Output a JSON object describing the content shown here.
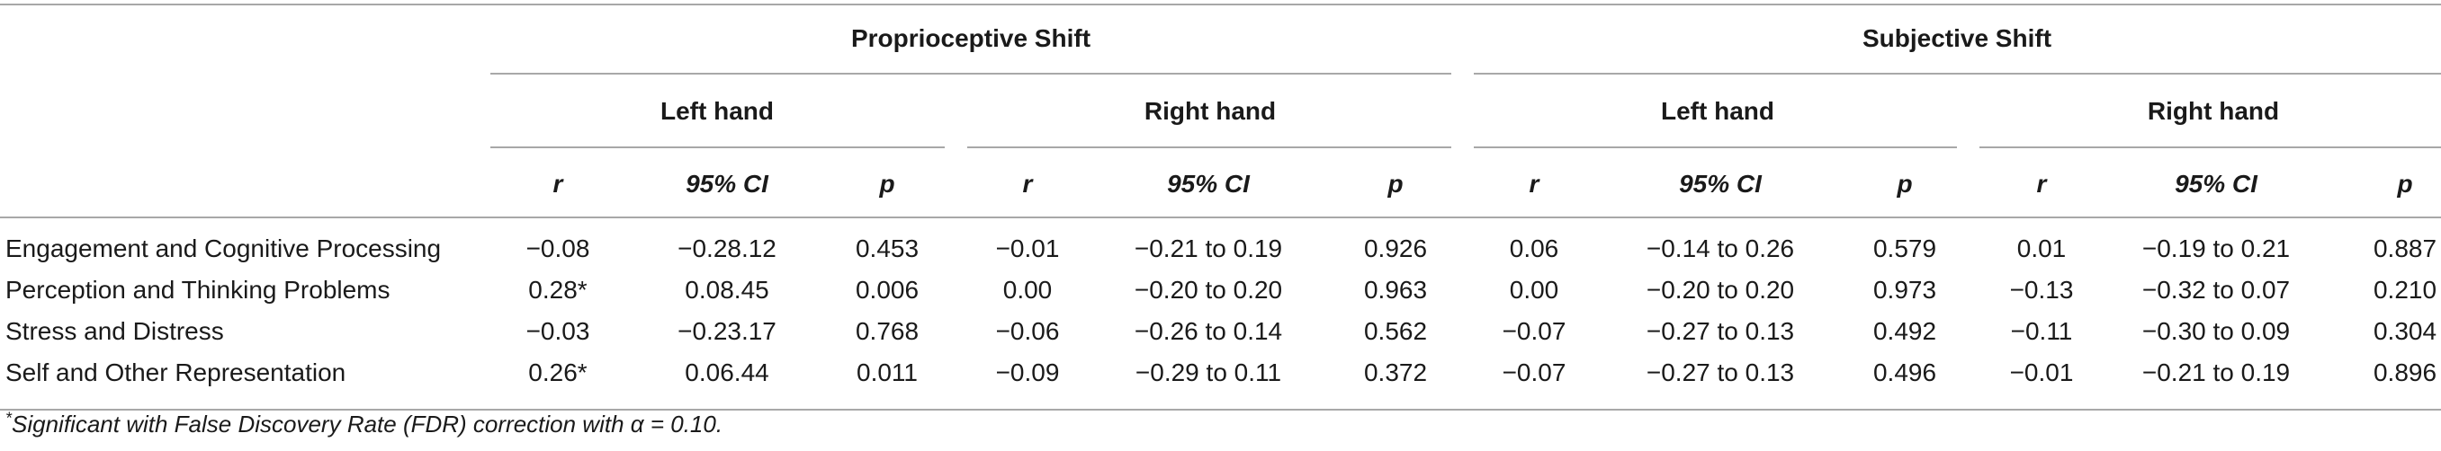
{
  "table": {
    "group_headers": [
      "Proprioceptive Shift",
      "Subjective Shift"
    ],
    "hand_headers": [
      "Left hand",
      "Right hand",
      "Left hand",
      "Right hand"
    ],
    "col_headers": [
      "r",
      "95% CI",
      "p",
      "r",
      "95% CI",
      "p",
      "r",
      "95% CI",
      "p",
      "r",
      "95% CI",
      "p"
    ],
    "rows": [
      {
        "label": "Engagement and Cognitive Processing",
        "cells": [
          "−0.08",
          "−0.28.12",
          "0.453",
          "−0.01",
          "−0.21 to 0.19",
          "0.926",
          "0.06",
          "−0.14 to 0.26",
          "0.579",
          "0.01",
          "−0.19 to 0.21",
          "0.887"
        ]
      },
      {
        "label": "Perception and Thinking Problems",
        "cells": [
          "0.28*",
          "0.08.45",
          "0.006",
          "0.00",
          "−0.20 to 0.20",
          "0.963",
          "0.00",
          "−0.20 to 0.20",
          "0.973",
          "−0.13",
          "−0.32 to 0.07",
          "0.210"
        ]
      },
      {
        "label": "Stress and Distress",
        "cells": [
          "−0.03",
          "−0.23.17",
          "0.768",
          "−0.06",
          "−0.26 to 0.14",
          "0.562",
          "−0.07",
          "−0.27 to 0.13",
          "0.492",
          "−0.11",
          "−0.30 to 0.09",
          "0.304"
        ]
      },
      {
        "label": "Self and Other Representation",
        "cells": [
          "0.26*",
          "0.06.44",
          "0.011",
          "−0.09",
          "−0.29 to 0.11",
          "0.372",
          "−0.07",
          "−0.27 to 0.13",
          "0.496",
          "−0.01",
          "−0.21 to 0.19",
          "0.896"
        ]
      }
    ],
    "footnote_mark": "*",
    "footnote_text": "Significant with False Discovery Rate (FDR) correction with α = 0.10."
  }
}
